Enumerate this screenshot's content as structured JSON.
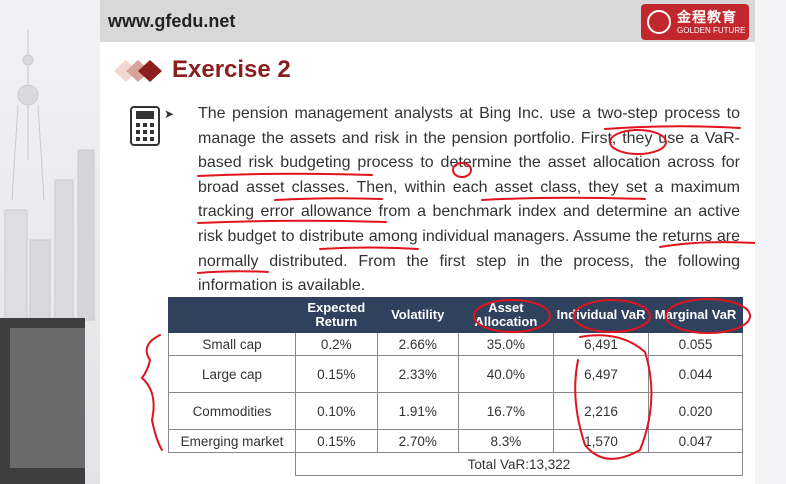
{
  "header": {
    "site": "www.gfedu.net",
    "logo_cn": "金程教育",
    "logo_en": "GOLDEN FUTURE"
  },
  "title": "Exercise 2",
  "question": {
    "text": "The pension management analysts at Bing Inc. use a two-step process to manage the assets and risk in the pension portfolio. First, they use a VaR-based risk budgeting process to determine the asset allocation across for broad asset classes. Then, within each asset class, they set a maximum tracking error allowance from a benchmark index and determine an active risk budget to distribute among individual managers. Assume the returns are normally distributed. From the first step in the process, the following information is available."
  },
  "table": {
    "headers": [
      "",
      "Expected Return",
      "Volatility",
      "Asset Allocation",
      "Individual VaR",
      "Marginal VaR"
    ],
    "rows": [
      [
        "Small cap",
        "0.2%",
        "2.66%",
        "35.0%",
        "6,491",
        "0.055"
      ],
      [
        "Large cap",
        "0.15%",
        "2.33%",
        "40.0%",
        "6,497",
        "0.044"
      ],
      [
        "Commodities",
        "0.10%",
        "1.91%",
        "16.7%",
        "2,216",
        "0.020"
      ],
      [
        "Emerging market",
        "0.15%",
        "2.70%",
        "8.3%",
        "1,570",
        "0.047"
      ]
    ],
    "total": "Total VaR:13,322"
  },
  "colors": {
    "header_bar": "#d8d8d8",
    "title": "#8b1e1e",
    "table_header": "#30415e",
    "logo": "#c1272d",
    "annotation": "#e0141e"
  },
  "icons": [
    "calculator-icon",
    "diamond-bullets-icon",
    "arrow-bullet-icon",
    "logo-seal-icon"
  ]
}
